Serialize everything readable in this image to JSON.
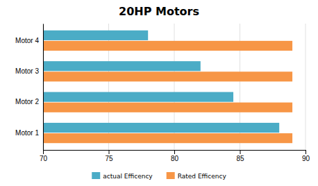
{
  "chart_data": {
    "type": "bar",
    "orientation": "horizontal",
    "title": "20HP Motors",
    "categories": [
      "Motor 1",
      "Motor 2",
      "Motor 3",
      "Motor 4"
    ],
    "series": [
      {
        "name": "actual Efficency",
        "color": "#4bacc6",
        "values": [
          88.0,
          84.5,
          82.0,
          78.0
        ]
      },
      {
        "name": "Rated Efficency",
        "color": "#f79646",
        "values": [
          89.0,
          89.0,
          89.0,
          89.0
        ]
      }
    ],
    "xlim": [
      70,
      90
    ],
    "xticks": [
      70,
      75,
      80,
      85,
      90
    ],
    "grid": true,
    "legend": "bottom"
  }
}
